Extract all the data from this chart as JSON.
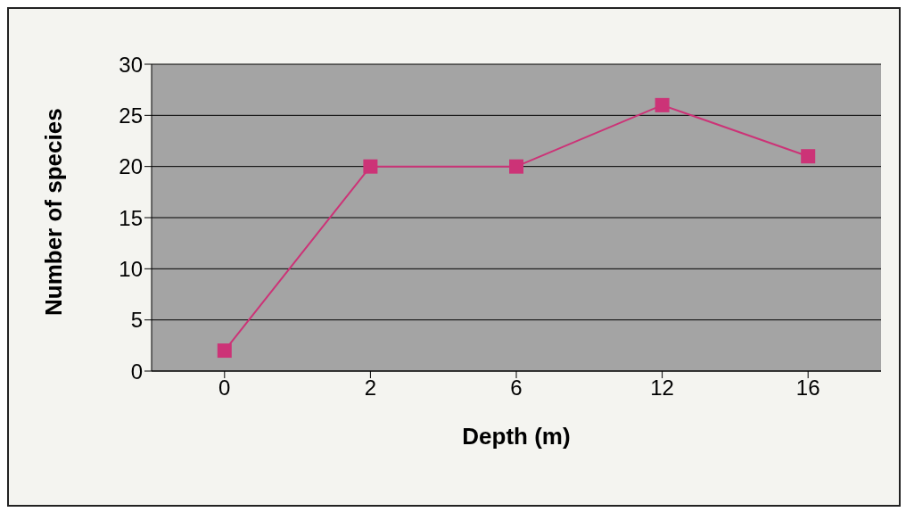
{
  "chart_data": {
    "type": "line",
    "xlabel": "Depth (m)",
    "ylabel": "Number of species",
    "categories": [
      "0",
      "2",
      "6",
      "12",
      "16"
    ],
    "series": [
      {
        "color": "#cc3377",
        "values": [
          2,
          20,
          20,
          26,
          21
        ]
      }
    ],
    "ylim": [
      0,
      30
    ],
    "yticks": [
      0,
      5,
      10,
      15,
      20,
      25,
      30
    ],
    "grid": "y",
    "marker": "square",
    "line_style": "solid"
  }
}
